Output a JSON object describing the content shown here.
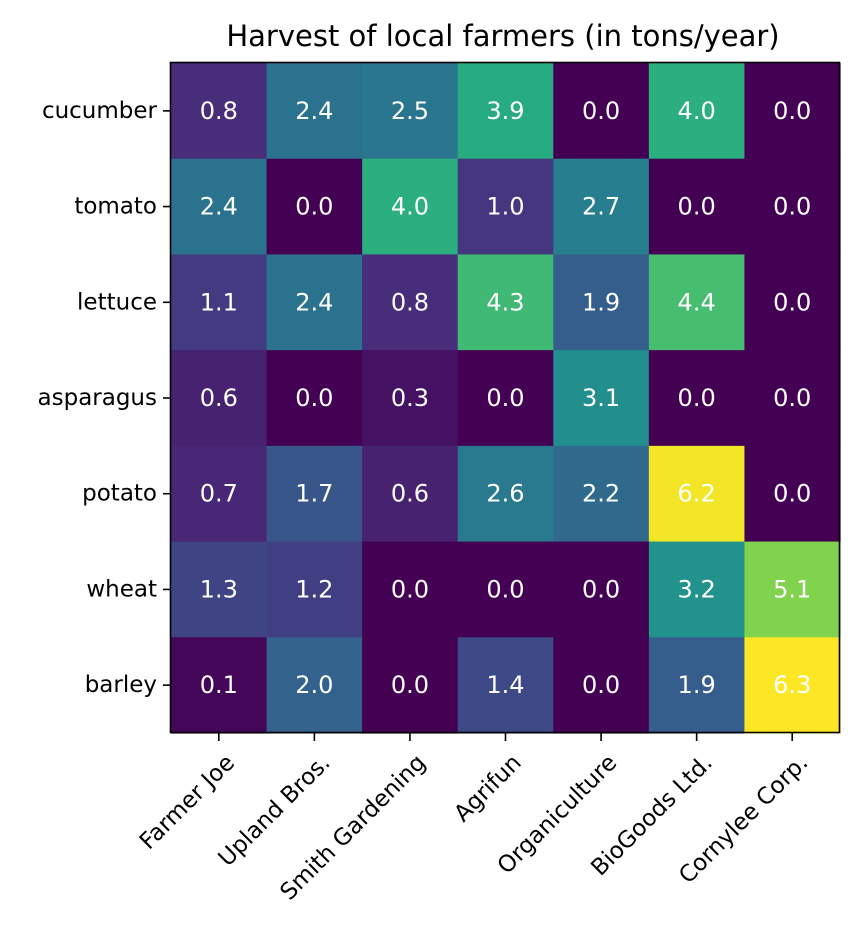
{
  "chart_data": {
    "type": "heatmap",
    "title": "Harvest of local farmers (in tons/year)",
    "xlabel": "",
    "ylabel": "",
    "colormap": "viridis",
    "vmin": 0.0,
    "vmax": 6.3,
    "x_categories": [
      "Farmer Joe",
      "Upland Bros.",
      "Smith Gardening",
      "Agrifun",
      "Organiculture",
      "BioGoods Ltd.",
      "Cornylee Corp."
    ],
    "y_categories": [
      "cucumber",
      "tomato",
      "lettuce",
      "asparagus",
      "potato",
      "wheat",
      "barley"
    ],
    "values": [
      [
        0.8,
        2.4,
        2.5,
        3.9,
        0.0,
        4.0,
        0.0
      ],
      [
        2.4,
        0.0,
        4.0,
        1.0,
        2.7,
        0.0,
        0.0
      ],
      [
        1.1,
        2.4,
        0.8,
        4.3,
        1.9,
        4.4,
        0.0
      ],
      [
        0.6,
        0.0,
        0.3,
        0.0,
        3.1,
        0.0,
        0.0
      ],
      [
        0.7,
        1.7,
        0.6,
        2.6,
        2.2,
        6.2,
        0.0
      ],
      [
        1.3,
        1.2,
        0.0,
        0.0,
        0.0,
        3.2,
        5.1
      ],
      [
        0.1,
        2.0,
        0.0,
        1.4,
        0.0,
        1.9,
        6.3
      ]
    ],
    "value_format": "0.0",
    "label_color": "#ffffff",
    "grid": false,
    "legend": "none"
  }
}
